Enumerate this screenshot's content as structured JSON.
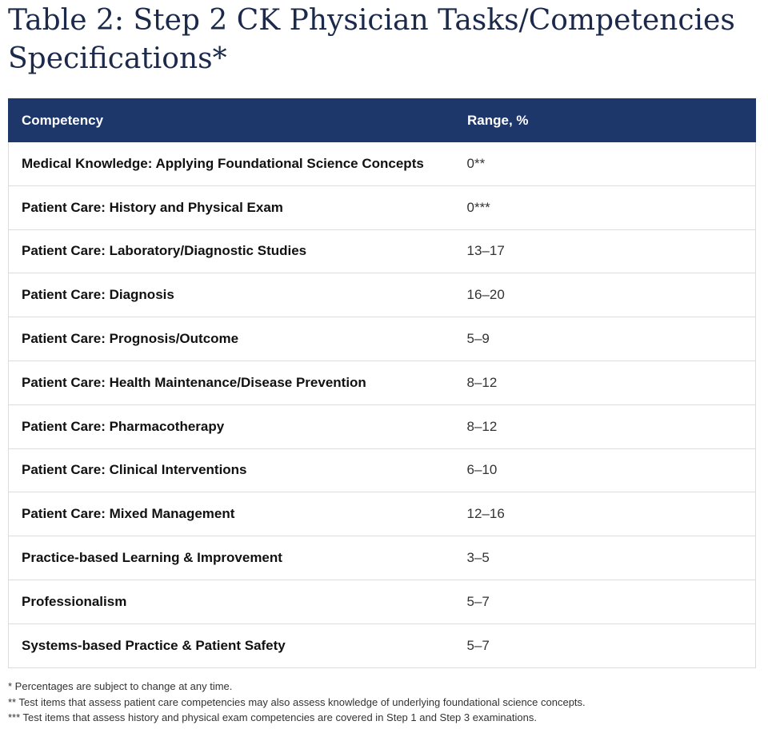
{
  "title": "Table 2: Step 2 CK Physician Tasks/Competencies Specifications*",
  "table": {
    "headers": [
      "Competency",
      "Range, %"
    ],
    "rows": [
      {
        "competency": "Medical Knowledge: Applying Foundational Science Concepts",
        "range": "0**"
      },
      {
        "competency": "Patient Care: History and Physical Exam",
        "range": "0***"
      },
      {
        "competency": "Patient Care: Laboratory/Diagnostic Studies",
        "range": "13–17"
      },
      {
        "competency": "Patient Care: Diagnosis",
        "range": "16–20"
      },
      {
        "competency": "Patient Care: Prognosis/Outcome",
        "range": "5–9"
      },
      {
        "competency": "Patient Care: Health Maintenance/Disease Prevention",
        "range": "8–12"
      },
      {
        "competency": "Patient Care: Pharmacotherapy",
        "range": "8–12"
      },
      {
        "competency": "Patient Care: Clinical Interventions",
        "range": "6–10"
      },
      {
        "competency": "Patient Care: Mixed Management",
        "range": "12–16"
      },
      {
        "competency": "Practice-based Learning & Improvement",
        "range": "3–5"
      },
      {
        "competency": "Professionalism",
        "range": "5–7"
      },
      {
        "competency": "Systems-based Practice & Patient Safety",
        "range": "5–7"
      }
    ]
  },
  "footnotes": [
    "* Percentages are subject to change at any time.",
    "** Test items that assess patient care competencies may also assess knowledge of underlying foundational science concepts.",
    "*** Test items that assess history and physical exam competencies are covered in Step 1 and Step 3 examinations."
  ],
  "colors": {
    "header_bg": "#1e376b",
    "title_text": "#1b2a4a",
    "row_border": "#dcdcdc"
  }
}
